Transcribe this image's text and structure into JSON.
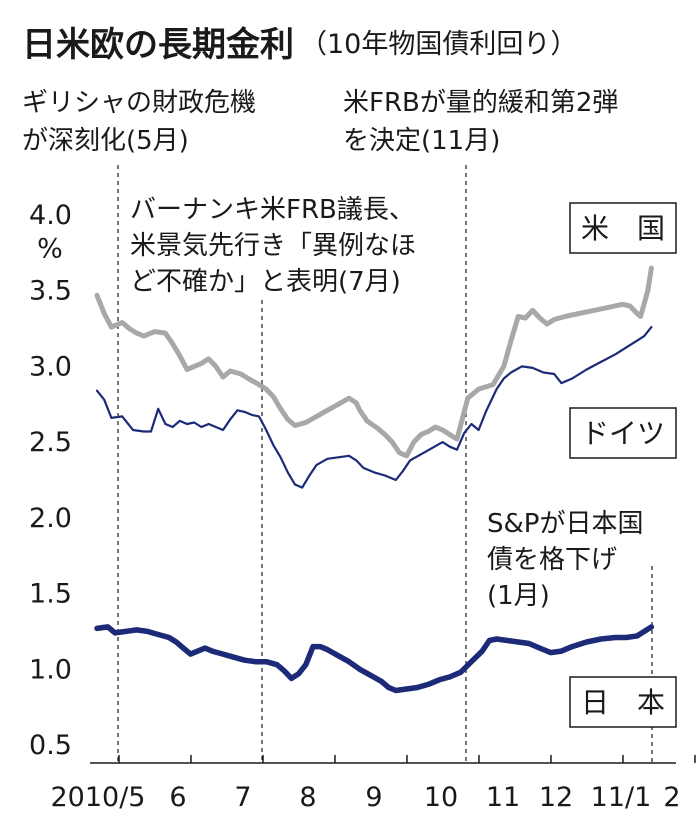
{
  "chart_data": {
    "type": "line",
    "title": "日米欧の長期金利",
    "subtitle": "（10年物国債利回り）",
    "ylabel": "%",
    "ylim": [
      0.5,
      4.0
    ],
    "yticks": [
      "4.0",
      "3.5",
      "3.0",
      "2.5",
      "2.0",
      "1.5",
      "1.0",
      "0.5"
    ],
    "xticks": [
      "2010/5",
      "6",
      "7",
      "8",
      "9",
      "10",
      "11",
      "12",
      "11/1",
      "2"
    ],
    "annotations": [
      {
        "id": "greece",
        "lines": [
          "ギリシャの財政危機",
          "が深刻化(5月)"
        ]
      },
      {
        "id": "qe2",
        "lines": [
          "米FRBが量的緩和第2弾",
          "を決定(11月)"
        ]
      },
      {
        "id": "bernanke",
        "lines": [
          "バーナンキ米FRB議長、",
          "米景気先行き「異例なほ",
          "ど不確か」と表明(7月)"
        ]
      },
      {
        "id": "sp",
        "lines": [
          "S&Pが日本国",
          "債を格下げ",
          "(1月)"
        ]
      }
    ],
    "series": [
      {
        "name": "米　国",
        "color": "#a8a8a8",
        "values": [
          [
            0,
            3.47
          ],
          [
            0.1,
            3.35
          ],
          [
            0.2,
            3.26
          ],
          [
            0.35,
            3.29
          ],
          [
            0.45,
            3.25
          ],
          [
            0.55,
            3.22
          ],
          [
            0.65,
            3.2
          ],
          [
            0.8,
            3.23
          ],
          [
            0.95,
            3.22
          ],
          [
            1.05,
            3.15
          ],
          [
            1.15,
            3.07
          ],
          [
            1.25,
            2.98
          ],
          [
            1.35,
            3.0
          ],
          [
            1.45,
            3.02
          ],
          [
            1.55,
            3.05
          ],
          [
            1.65,
            3.0
          ],
          [
            1.75,
            2.93
          ],
          [
            1.85,
            2.97
          ],
          [
            2.0,
            2.95
          ],
          [
            2.1,
            2.92
          ],
          [
            2.25,
            2.88
          ],
          [
            2.35,
            2.85
          ],
          [
            2.45,
            2.8
          ],
          [
            2.55,
            2.72
          ],
          [
            2.65,
            2.65
          ],
          [
            2.75,
            2.61
          ],
          [
            2.9,
            2.63
          ],
          [
            3.05,
            2.67
          ],
          [
            3.2,
            2.71
          ],
          [
            3.35,
            2.75
          ],
          [
            3.5,
            2.79
          ],
          [
            3.6,
            2.76
          ],
          [
            3.65,
            2.71
          ],
          [
            3.75,
            2.64
          ],
          [
            3.9,
            2.59
          ],
          [
            4.0,
            2.55
          ],
          [
            4.1,
            2.5
          ],
          [
            4.2,
            2.43
          ],
          [
            4.3,
            2.41
          ],
          [
            4.4,
            2.5
          ],
          [
            4.5,
            2.55
          ],
          [
            4.6,
            2.57
          ],
          [
            4.7,
            2.6
          ],
          [
            4.8,
            2.58
          ],
          [
            4.9,
            2.55
          ],
          [
            5.0,
            2.52
          ],
          [
            5.15,
            2.79
          ],
          [
            5.3,
            2.85
          ],
          [
            5.5,
            2.88
          ],
          [
            5.65,
            3.0
          ],
          [
            5.75,
            3.17
          ],
          [
            5.85,
            3.33
          ],
          [
            5.95,
            3.32
          ],
          [
            6.05,
            3.37
          ],
          [
            6.15,
            3.32
          ],
          [
            6.25,
            3.28
          ],
          [
            6.35,
            3.31
          ],
          [
            6.5,
            3.33
          ],
          [
            6.7,
            3.35
          ],
          [
            6.9,
            3.37
          ],
          [
            7.1,
            3.39
          ],
          [
            7.3,
            3.41
          ],
          [
            7.4,
            3.4
          ],
          [
            7.5,
            3.35
          ],
          [
            7.55,
            3.33
          ],
          [
            7.65,
            3.5
          ],
          [
            7.7,
            3.65
          ]
        ]
      },
      {
        "name": "ドイツ",
        "color": "#1c2a78",
        "values": [
          [
            0,
            2.84
          ],
          [
            0.1,
            2.78
          ],
          [
            0.2,
            2.66
          ],
          [
            0.35,
            2.67
          ],
          [
            0.5,
            2.58
          ],
          [
            0.65,
            2.57
          ],
          [
            0.75,
            2.57
          ],
          [
            0.85,
            2.72
          ],
          [
            0.95,
            2.62
          ],
          [
            1.05,
            2.6
          ],
          [
            1.15,
            2.64
          ],
          [
            1.25,
            2.62
          ],
          [
            1.35,
            2.63
          ],
          [
            1.45,
            2.6
          ],
          [
            1.55,
            2.62
          ],
          [
            1.65,
            2.6
          ],
          [
            1.75,
            2.58
          ],
          [
            1.85,
            2.65
          ],
          [
            1.95,
            2.71
          ],
          [
            2.05,
            2.7
          ],
          [
            2.15,
            2.68
          ],
          [
            2.25,
            2.67
          ],
          [
            2.35,
            2.58
          ],
          [
            2.45,
            2.48
          ],
          [
            2.55,
            2.4
          ],
          [
            2.65,
            2.3
          ],
          [
            2.75,
            2.22
          ],
          [
            2.85,
            2.2
          ],
          [
            2.95,
            2.28
          ],
          [
            3.05,
            2.35
          ],
          [
            3.2,
            2.39
          ],
          [
            3.35,
            2.4
          ],
          [
            3.5,
            2.41
          ],
          [
            3.6,
            2.38
          ],
          [
            3.7,
            2.33
          ],
          [
            3.85,
            2.3
          ],
          [
            4.0,
            2.28
          ],
          [
            4.15,
            2.25
          ],
          [
            4.25,
            2.31
          ],
          [
            4.35,
            2.38
          ],
          [
            4.5,
            2.42
          ],
          [
            4.65,
            2.46
          ],
          [
            4.8,
            2.5
          ],
          [
            4.9,
            2.47
          ],
          [
            5.0,
            2.45
          ],
          [
            5.1,
            2.56
          ],
          [
            5.2,
            2.62
          ],
          [
            5.3,
            2.58
          ],
          [
            5.4,
            2.7
          ],
          [
            5.55,
            2.85
          ],
          [
            5.65,
            2.92
          ],
          [
            5.75,
            2.96
          ],
          [
            5.9,
            3.0
          ],
          [
            6.05,
            2.99
          ],
          [
            6.2,
            2.96
          ],
          [
            6.35,
            2.95
          ],
          [
            6.45,
            2.89
          ],
          [
            6.6,
            2.92
          ],
          [
            6.8,
            2.98
          ],
          [
            7.0,
            3.03
          ],
          [
            7.2,
            3.08
          ],
          [
            7.4,
            3.14
          ],
          [
            7.5,
            3.17
          ],
          [
            7.6,
            3.2
          ],
          [
            7.7,
            3.26
          ]
        ]
      },
      {
        "name": "日　本",
        "color": "#1c2a78",
        "values": [
          [
            0,
            1.27
          ],
          [
            0.15,
            1.28
          ],
          [
            0.25,
            1.24
          ],
          [
            0.4,
            1.25
          ],
          [
            0.55,
            1.26
          ],
          [
            0.7,
            1.25
          ],
          [
            0.85,
            1.23
          ],
          [
            1.0,
            1.21
          ],
          [
            1.1,
            1.18
          ],
          [
            1.2,
            1.14
          ],
          [
            1.3,
            1.1
          ],
          [
            1.4,
            1.12
          ],
          [
            1.5,
            1.14
          ],
          [
            1.6,
            1.12
          ],
          [
            1.75,
            1.1
          ],
          [
            1.9,
            1.08
          ],
          [
            2.05,
            1.06
          ],
          [
            2.2,
            1.05
          ],
          [
            2.35,
            1.05
          ],
          [
            2.5,
            1.03
          ],
          [
            2.6,
            0.99
          ],
          [
            2.7,
            0.94
          ],
          [
            2.8,
            0.97
          ],
          [
            2.9,
            1.03
          ],
          [
            3.0,
            1.15
          ],
          [
            3.1,
            1.15
          ],
          [
            3.2,
            1.13
          ],
          [
            3.35,
            1.09
          ],
          [
            3.5,
            1.05
          ],
          [
            3.65,
            1.0
          ],
          [
            3.8,
            0.96
          ],
          [
            3.95,
            0.92
          ],
          [
            4.05,
            0.88
          ],
          [
            4.15,
            0.86
          ],
          [
            4.3,
            0.87
          ],
          [
            4.45,
            0.88
          ],
          [
            4.6,
            0.9
          ],
          [
            4.75,
            0.93
          ],
          [
            4.9,
            0.95
          ],
          [
            5.05,
            0.98
          ],
          [
            5.2,
            1.05
          ],
          [
            5.35,
            1.12
          ],
          [
            5.45,
            1.19
          ],
          [
            5.55,
            1.2
          ],
          [
            5.7,
            1.19
          ],
          [
            5.85,
            1.18
          ],
          [
            6.0,
            1.17
          ],
          [
            6.15,
            1.14
          ],
          [
            6.3,
            1.11
          ],
          [
            6.45,
            1.12
          ],
          [
            6.6,
            1.15
          ],
          [
            6.8,
            1.18
          ],
          [
            7.0,
            1.2
          ],
          [
            7.2,
            1.21
          ],
          [
            7.35,
            1.21
          ],
          [
            7.5,
            1.22
          ],
          [
            7.6,
            1.25
          ],
          [
            7.7,
            1.28
          ]
        ]
      }
    ]
  }
}
